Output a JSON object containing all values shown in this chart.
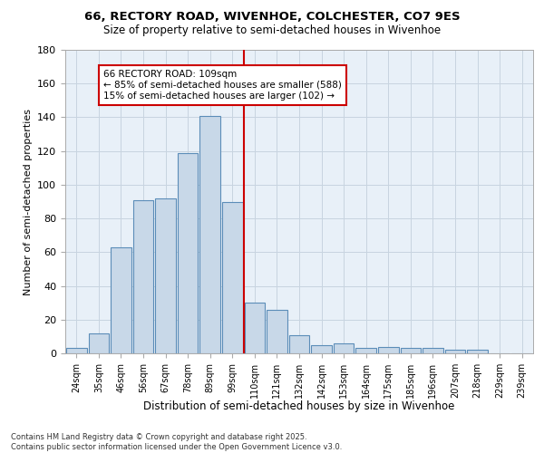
{
  "title_line1": "66, RECTORY ROAD, WIVENHOE, COLCHESTER, CO7 9ES",
  "title_line2": "Size of property relative to semi-detached houses in Wivenhoe",
  "xlabel": "Distribution of semi-detached houses by size in Wivenhoe",
  "ylabel": "Number of semi-detached properties",
  "categories": [
    "24sqm",
    "35sqm",
    "46sqm",
    "56sqm",
    "67sqm",
    "78sqm",
    "89sqm",
    "99sqm",
    "110sqm",
    "121sqm",
    "132sqm",
    "142sqm",
    "153sqm",
    "164sqm",
    "175sqm",
    "185sqm",
    "196sqm",
    "207sqm",
    "218sqm",
    "229sqm",
    "239sqm"
  ],
  "bar_heights": [
    3,
    12,
    63,
    91,
    92,
    119,
    141,
    90,
    30,
    26,
    11,
    5,
    6,
    3,
    4,
    3,
    3,
    2,
    2,
    0,
    0
  ],
  "bar_color": "#c8d8e8",
  "bar_edge_color": "#5b8db8",
  "grid_color": "#c8d4e0",
  "bg_color": "#e8f0f8",
  "vline_color": "#cc0000",
  "annotation_text": "66 RECTORY ROAD: 109sqm\n← 85% of semi-detached houses are smaller (588)\n15% of semi-detached houses are larger (102) →",
  "annotation_box_color": "#cc0000",
  "footer_line1": "Contains HM Land Registry data © Crown copyright and database right 2025.",
  "footer_line2": "Contains public sector information licensed under the Open Government Licence v3.0.",
  "ylim": [
    0,
    180
  ],
  "yticks": [
    0,
    20,
    40,
    60,
    80,
    100,
    120,
    140,
    160,
    180
  ]
}
